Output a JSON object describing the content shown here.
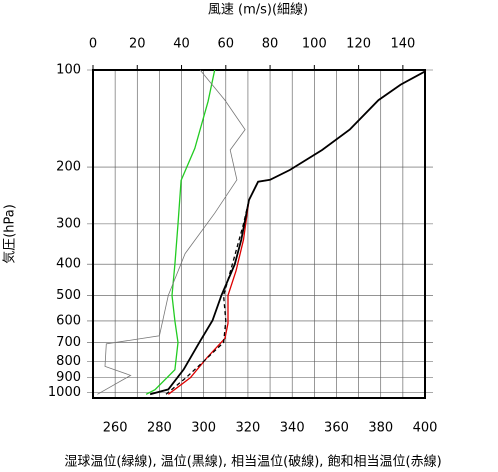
{
  "chart_data": {
    "type": "line",
    "x2_label": "風速 (m/s)(細線)",
    "y_label": "気圧(hPa)",
    "caption": "湿球温位(緑線), 温位(黒線), 相当温位(破線), 飽和相当温位(赤線)",
    "xlim": [
      250,
      400
    ],
    "xticks": [
      260,
      280,
      300,
      320,
      340,
      360,
      380,
      400
    ],
    "xminorticks": [
      250,
      270,
      290,
      310,
      330,
      350,
      370,
      390
    ],
    "x2lim": [
      0,
      150
    ],
    "x2ticks": [
      0,
      20,
      40,
      60,
      80,
      100,
      120,
      140
    ],
    "ylim": [
      1040,
      100
    ],
    "yticks": [
      100,
      200,
      300,
      400,
      500,
      600,
      700,
      800,
      900,
      1000
    ],
    "log_y": true,
    "grid": true,
    "series": [
      {
        "name": "湿球温位",
        "color": "#22cc22",
        "dash": false,
        "width": 1.3,
        "pressure": [
          1013,
          980,
          850,
          700,
          600,
          500,
          400,
          300,
          220,
          175,
          125,
          100
        ],
        "values": [
          274,
          278,
          287,
          288.4,
          287,
          285.7,
          287,
          288.4,
          289.8,
          296,
          302,
          305
        ]
      },
      {
        "name": "飽和相当温位",
        "color": "#dd0000",
        "dash": false,
        "width": 1.3,
        "pressure": [
          1013,
          900,
          780,
          680,
          610,
          500,
          420,
          336,
          253,
          222,
          219,
          204,
          177,
          153,
          124,
          111,
          101
        ],
        "values": [
          284,
          294,
          301.5,
          309.6,
          311,
          311,
          314.6,
          318,
          320.5,
          324.6,
          330,
          339,
          353.5,
          366,
          379,
          389,
          400
        ]
      },
      {
        "name": "相当温位",
        "color": "#000000",
        "dash": true,
        "width": 1.3,
        "pressure": [
          1013,
          900,
          800,
          700,
          600,
          500,
          400,
          300,
          253,
          222
        ],
        "values": [
          283,
          292,
          300,
          309,
          310,
          309,
          313,
          318,
          320.5,
          324.6
        ]
      },
      {
        "name": "温位",
        "color": "#000000",
        "dash": false,
        "width": 1.8,
        "pressure": [
          1013,
          978,
          848,
          701,
          598,
          500,
          401,
          336,
          253,
          222,
          219,
          204,
          177,
          153,
          124,
          111,
          101
        ],
        "values": [
          275.8,
          284,
          291,
          298,
          304,
          308,
          314,
          317,
          320.5,
          324.6,
          330,
          339,
          353.5,
          366,
          379,
          389,
          400
        ]
      },
      {
        "name": "風速",
        "color": "#777777",
        "dash": false,
        "width": 0.8,
        "axis": "x2",
        "pressure": [
          100,
          124,
          153,
          177,
          219,
          278,
          371,
          500,
          667,
          707,
          830,
          885,
          1013
        ],
        "values": [
          48.4,
          59.6,
          68.7,
          62,
          65,
          55,
          41.6,
          34,
          30,
          6,
          5.4,
          17,
          2
        ]
      }
    ]
  }
}
